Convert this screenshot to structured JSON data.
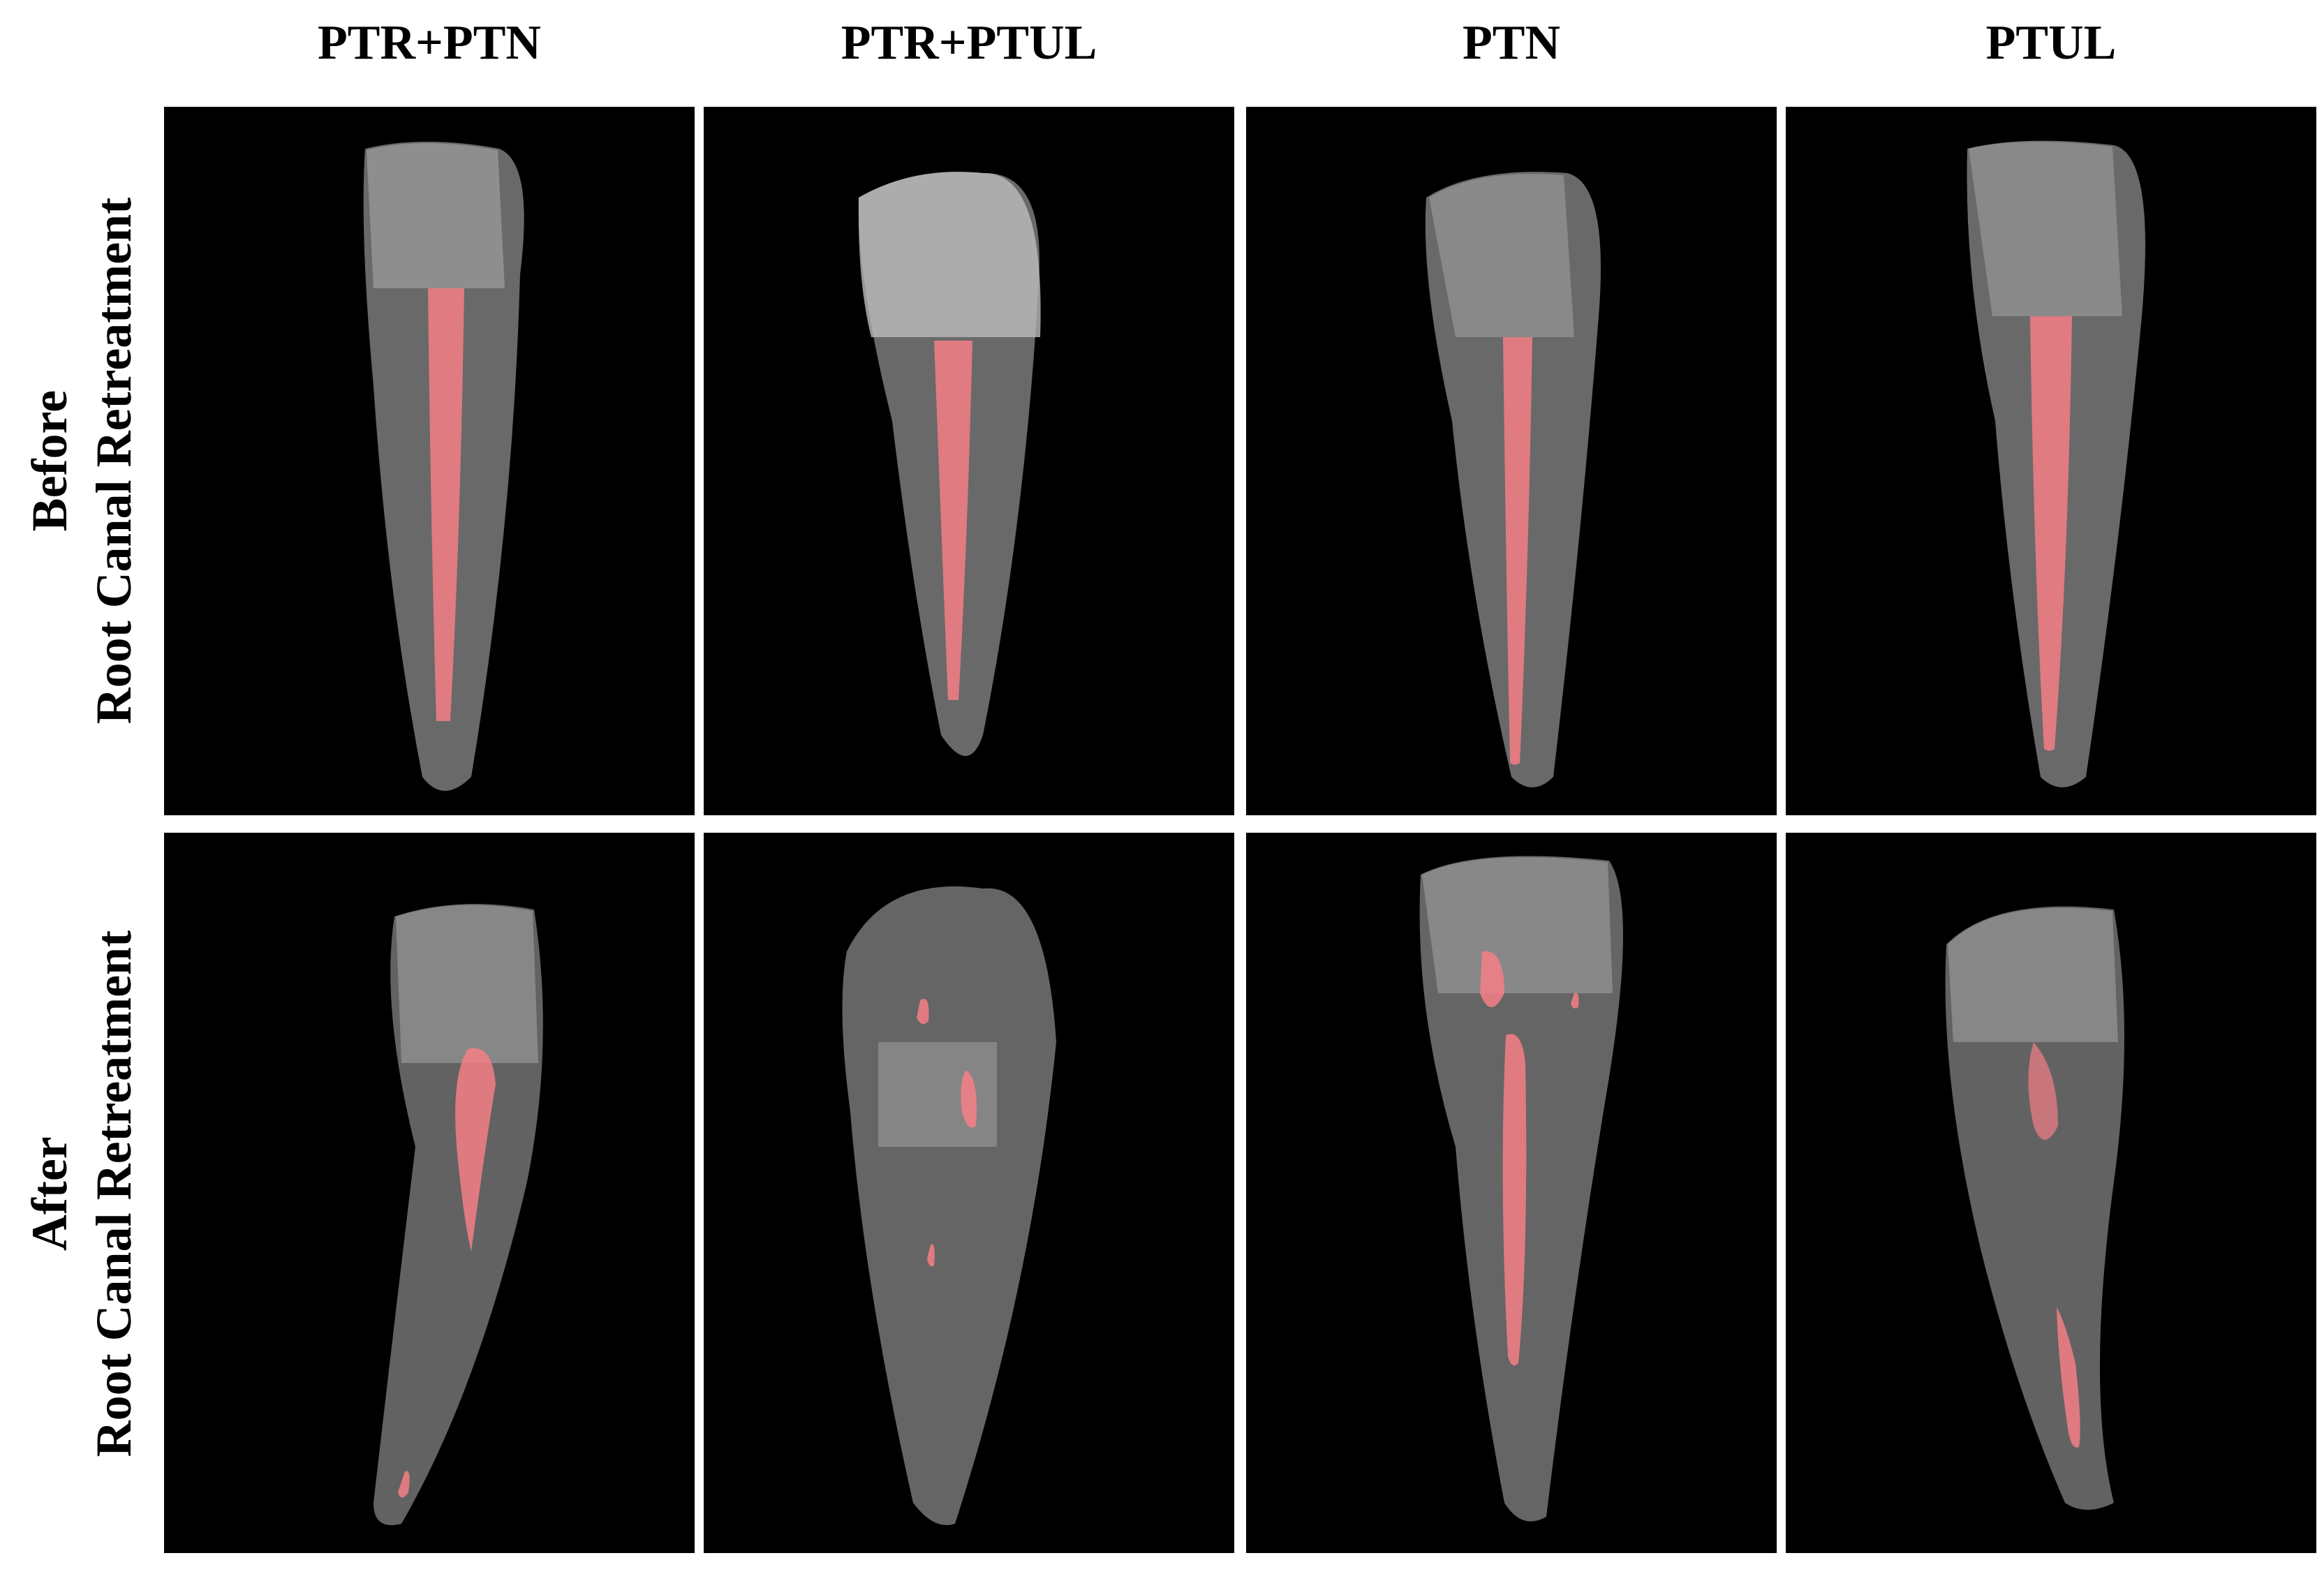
{
  "columns": [
    "PTR+PTN",
    "PTR+PTUL",
    "PTN",
    "PTUL"
  ],
  "rows": [
    {
      "line1": "Before",
      "line2": "Root Canal Retreatment"
    },
    {
      "line1": "After",
      "line2": "Root Canal Retreatment"
    }
  ],
  "colors": {
    "background": "#000000",
    "tooth": "#8c8c8c",
    "filling": "#f47f86"
  }
}
